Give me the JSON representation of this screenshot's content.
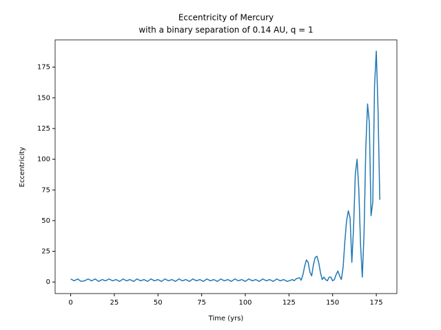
{
  "chart_data": {
    "type": "line",
    "title": [
      "Eccentricity of Mercury",
      "with a binary separation of 0.14 AU, q = 1"
    ],
    "xlabel": "Time (yrs)",
    "ylabel": "Eccentricity",
    "x": [
      0,
      2,
      4,
      6,
      8,
      10,
      12,
      14,
      16,
      18,
      20,
      22,
      24,
      26,
      28,
      30,
      32,
      34,
      36,
      38,
      40,
      42,
      44,
      46,
      48,
      50,
      52,
      54,
      56,
      58,
      60,
      62,
      64,
      66,
      68,
      70,
      72,
      74,
      76,
      78,
      80,
      82,
      84,
      86,
      88,
      90,
      92,
      94,
      96,
      98,
      100,
      102,
      104,
      106,
      108,
      110,
      112,
      114,
      116,
      118,
      120,
      122,
      124,
      125,
      126,
      127,
      128,
      129,
      130,
      131,
      132,
      133,
      134,
      135,
      136,
      137,
      138,
      139,
      140,
      141,
      142,
      143,
      144,
      145,
      146,
      147,
      148,
      149,
      150,
      151,
      152,
      153,
      154,
      155,
      156,
      157,
      158,
      159,
      160,
      161,
      162,
      163,
      164,
      165,
      166,
      167,
      168,
      169,
      170,
      171,
      172,
      173,
      174,
      175,
      176,
      177
    ],
    "series": [
      {
        "name": "Mercury",
        "color": "#1f77b4",
        "values": [
          2.5,
          1,
          2.5,
          0.5,
          1,
          2.5,
          1,
          2.5,
          0.5,
          2,
          1,
          2.5,
          1,
          2,
          0.5,
          2.5,
          1,
          2,
          0.5,
          2.5,
          1,
          2,
          0.5,
          2.5,
          1,
          2,
          0.5,
          2.5,
          1,
          2,
          0.5,
          2.5,
          1,
          2,
          0.5,
          2.5,
          1,
          2,
          0.5,
          2.5,
          1,
          2,
          0.5,
          2.5,
          1,
          2,
          0.5,
          2.5,
          1,
          2,
          0.5,
          2.5,
          1,
          2,
          0.5,
          2.5,
          1,
          2,
          0.5,
          2.5,
          1,
          2,
          0.5,
          1,
          1.5,
          2,
          1,
          2.5,
          3,
          3.5,
          1.5,
          6,
          13,
          18,
          16,
          8,
          5,
          14,
          20,
          21,
          16,
          8,
          2,
          4,
          2,
          1,
          4,
          4,
          1,
          2,
          6,
          9,
          5,
          2,
          12,
          33,
          50,
          58,
          52,
          16,
          45,
          88,
          100,
          75,
          30,
          4,
          40,
          110,
          145,
          130,
          54,
          65,
          160,
          188,
          140,
          67
        ]
      }
    ],
    "xlim": [
      -8.9,
      186.8
    ],
    "ylim": [
      -9.4,
      197.2
    ],
    "xticks": [
      0,
      25,
      50,
      75,
      100,
      125,
      150,
      175
    ],
    "yticks": [
      0,
      25,
      50,
      75,
      100,
      125,
      150,
      175
    ]
  }
}
